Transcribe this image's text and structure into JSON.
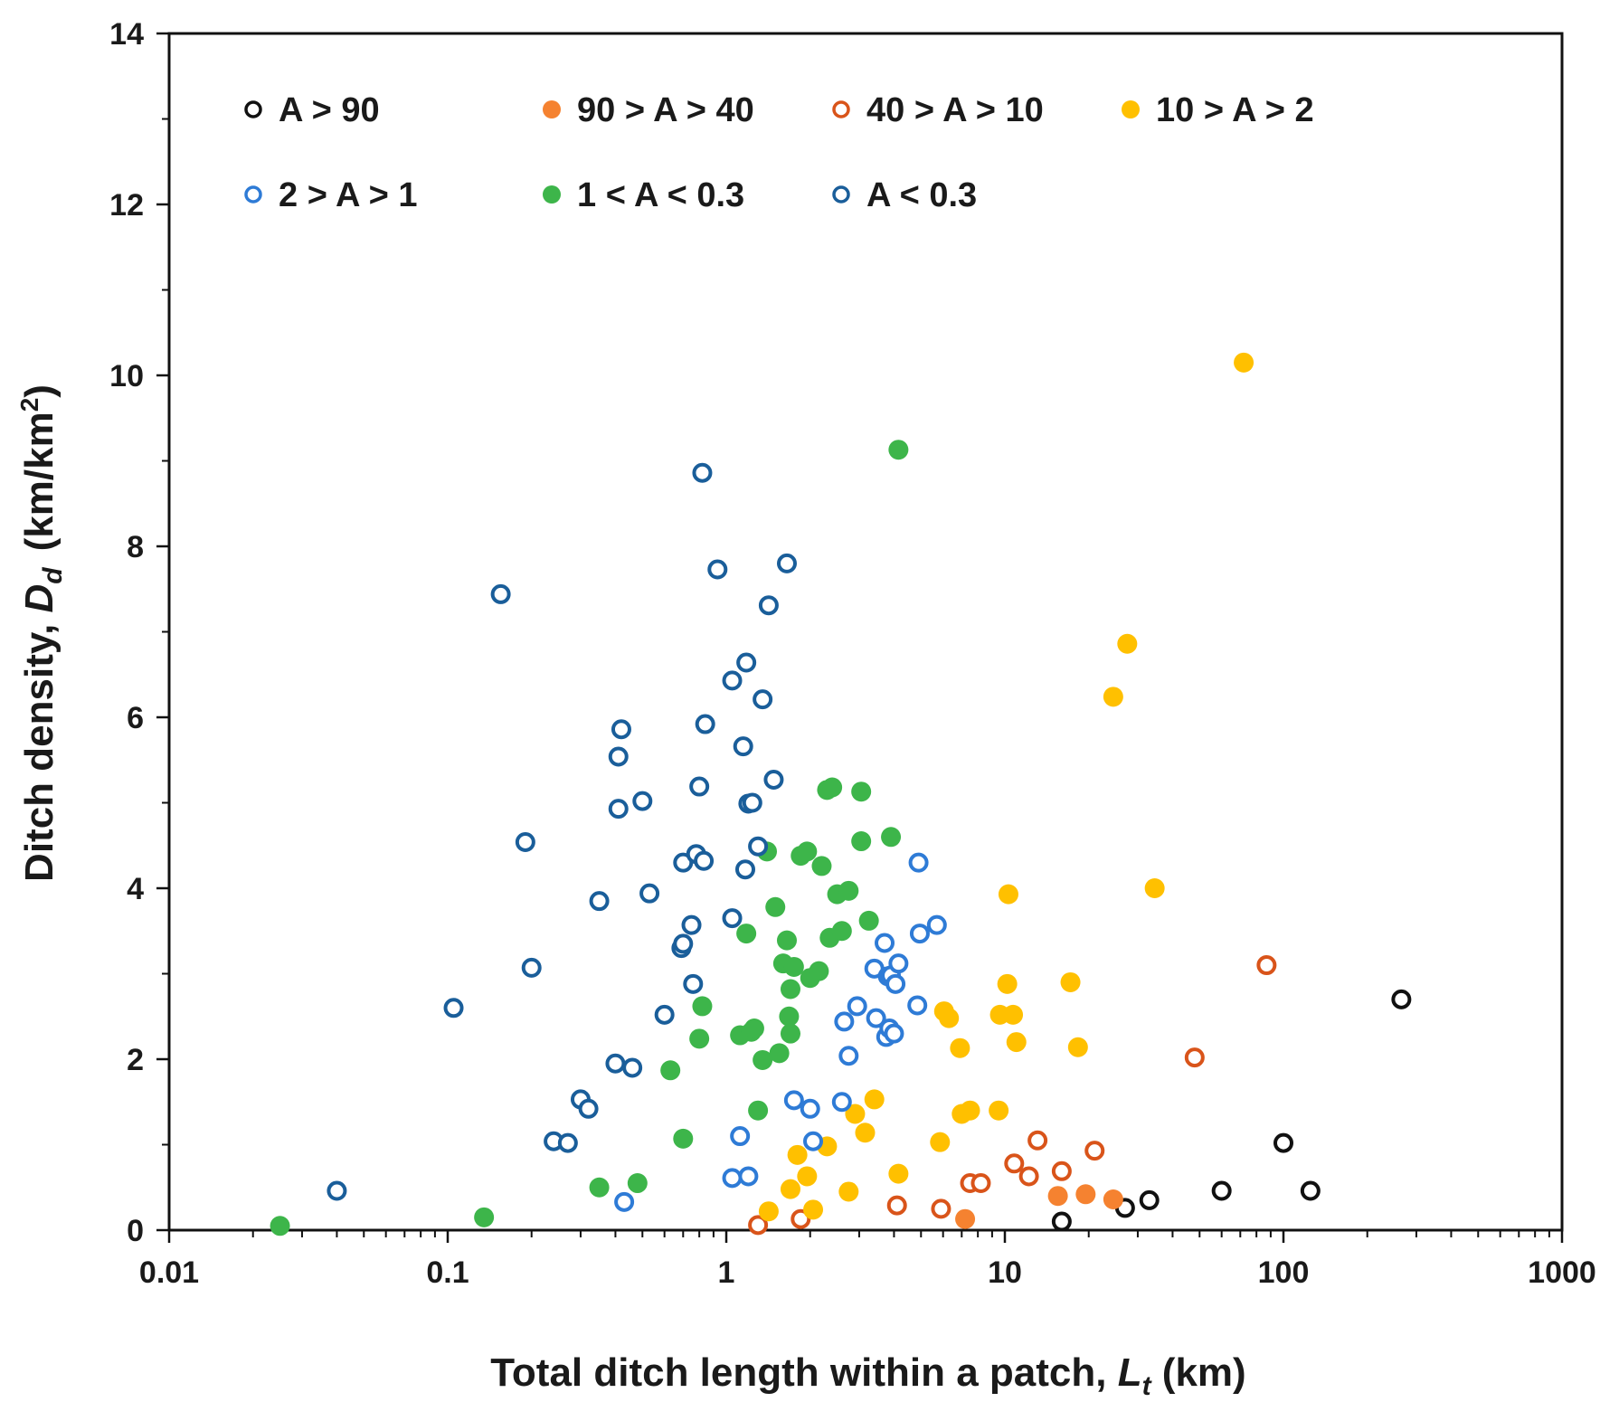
{
  "chart_data": {
    "type": "scatter",
    "title": "",
    "xlabel": {
      "main": "Total ditch length within a patch, ",
      "symbol": "L",
      "sub": "t",
      "unit": " (km)"
    },
    "ylabel": {
      "main": "Ditch density, ",
      "symbol": "D",
      "sub": "d",
      "unit": "(km/km",
      "sup": "2",
      "close": ")"
    },
    "xscale": "log",
    "xlim": [
      0.01,
      1000
    ],
    "ylim": [
      0,
      14
    ],
    "x_tick_labels": [
      "0.01",
      "0.1",
      "1",
      "10",
      "100",
      "1000"
    ],
    "y_tick_labels": [
      "0",
      "2",
      "4",
      "6",
      "8",
      "10",
      "12",
      "14"
    ],
    "grid": false,
    "legend_position": "top-left, inside plot",
    "series": [
      {
        "name": "A > 90",
        "color": "#111111",
        "filled": false,
        "points": [
          [
            16,
            0.1
          ],
          [
            27,
            0.26
          ],
          [
            33,
            0.35
          ],
          [
            60,
            0.46
          ],
          [
            100,
            1.02
          ],
          [
            125,
            0.46
          ],
          [
            265,
            2.7
          ]
        ]
      },
      {
        "name": "90 > A > 40",
        "color": "#F58230",
        "filled": true,
        "points": [
          [
            7.2,
            0.13
          ],
          [
            15.5,
            0.4
          ],
          [
            19.5,
            0.42
          ],
          [
            24.5,
            0.36
          ]
        ]
      },
      {
        "name": "40 > A > 10",
        "color": "#D9541A",
        "filled": false,
        "points": [
          [
            1.3,
            0.06
          ],
          [
            1.85,
            0.13
          ],
          [
            4.1,
            0.29
          ],
          [
            5.9,
            0.25
          ],
          [
            7.5,
            0.55
          ],
          [
            8.2,
            0.55
          ],
          [
            10.8,
            0.78
          ],
          [
            12.2,
            0.63
          ],
          [
            13.1,
            1.05
          ],
          [
            16.0,
            0.69
          ],
          [
            21.0,
            0.93
          ],
          [
            48,
            2.02
          ],
          [
            87,
            3.1
          ]
        ]
      },
      {
        "name": "10 > A > 2",
        "color": "#FFC000",
        "filled": true,
        "points": [
          [
            1.42,
            0.22
          ],
          [
            2.05,
            0.24
          ],
          [
            1.7,
            0.48
          ],
          [
            1.95,
            0.63
          ],
          [
            1.8,
            0.88
          ],
          [
            2.3,
            0.98
          ],
          [
            2.75,
            0.45
          ],
          [
            2.9,
            1.36
          ],
          [
            3.15,
            1.14
          ],
          [
            3.4,
            1.53
          ],
          [
            4.15,
            0.66
          ],
          [
            5.85,
            1.03
          ],
          [
            6.05,
            2.56
          ],
          [
            6.3,
            2.48
          ],
          [
            6.9,
            2.13
          ],
          [
            7.0,
            1.36
          ],
          [
            7.5,
            1.4
          ],
          [
            9.5,
            1.4
          ],
          [
            9.6,
            2.52
          ],
          [
            10.2,
            2.88
          ],
          [
            10.3,
            3.93
          ],
          [
            10.7,
            2.52
          ],
          [
            11.0,
            2.2
          ],
          [
            17.2,
            2.9
          ],
          [
            18.3,
            2.14
          ],
          [
            24.5,
            6.24
          ],
          [
            27.5,
            6.86
          ],
          [
            34.5,
            4.0
          ],
          [
            72,
            10.15
          ]
        ]
      },
      {
        "name": "2 > A > 1",
        "color": "#2E7BD6",
        "filled": false,
        "points": [
          [
            0.43,
            0.33
          ],
          [
            1.05,
            0.61
          ],
          [
            1.2,
            0.63
          ],
          [
            1.12,
            1.1
          ],
          [
            1.75,
            1.52
          ],
          [
            2.0,
            1.42
          ],
          [
            2.05,
            1.04
          ],
          [
            2.6,
            1.5
          ],
          [
            2.65,
            2.44
          ],
          [
            2.75,
            2.04
          ],
          [
            2.95,
            2.62
          ],
          [
            3.4,
            3.06
          ],
          [
            3.45,
            2.48
          ],
          [
            3.7,
            3.36
          ],
          [
            3.75,
            2.26
          ],
          [
            3.8,
            2.97
          ],
          [
            3.85,
            2.36
          ],
          [
            3.9,
            2.98
          ],
          [
            4.0,
            2.3
          ],
          [
            4.05,
            2.88
          ],
          [
            4.15,
            3.12
          ],
          [
            4.85,
            2.63
          ],
          [
            4.9,
            4.3
          ],
          [
            4.95,
            3.47
          ],
          [
            5.7,
            3.57
          ]
        ]
      },
      {
        "name": "1 < A  < 0.3",
        "color": "#3DB54A",
        "filled": true,
        "points": [
          [
            0.025,
            0.05
          ],
          [
            0.135,
            0.15
          ],
          [
            0.35,
            0.5
          ],
          [
            0.48,
            0.55
          ],
          [
            0.63,
            1.87
          ],
          [
            0.7,
            1.07
          ],
          [
            0.8,
            2.24
          ],
          [
            0.82,
            2.62
          ],
          [
            1.12,
            2.28
          ],
          [
            1.18,
            3.47
          ],
          [
            1.23,
            2.32
          ],
          [
            1.26,
            2.36
          ],
          [
            1.3,
            1.4
          ],
          [
            1.35,
            1.99
          ],
          [
            1.4,
            4.43
          ],
          [
            1.5,
            3.78
          ],
          [
            1.55,
            2.07
          ],
          [
            1.6,
            3.12
          ],
          [
            1.65,
            3.39
          ],
          [
            1.68,
            2.5
          ],
          [
            1.7,
            2.3
          ],
          [
            1.7,
            2.82
          ],
          [
            1.75,
            3.08
          ],
          [
            1.85,
            4.38
          ],
          [
            1.95,
            4.43
          ],
          [
            2.0,
            2.95
          ],
          [
            2.15,
            3.03
          ],
          [
            2.2,
            4.26
          ],
          [
            2.3,
            5.15
          ],
          [
            2.35,
            3.42
          ],
          [
            2.4,
            5.18
          ],
          [
            2.5,
            3.93
          ],
          [
            2.6,
            3.5
          ],
          [
            2.75,
            3.97
          ],
          [
            3.05,
            5.13
          ],
          [
            3.05,
            4.55
          ],
          [
            3.25,
            3.62
          ],
          [
            3.9,
            4.6
          ],
          [
            4.15,
            9.13
          ]
        ]
      },
      {
        "name": "A < 0.3",
        "color": "#1A5E9A",
        "filled": false,
        "points": [
          [
            0.04,
            0.46
          ],
          [
            0.105,
            2.6
          ],
          [
            0.155,
            7.44
          ],
          [
            0.19,
            4.54
          ],
          [
            0.2,
            3.07
          ],
          [
            0.24,
            1.04
          ],
          [
            0.27,
            1.02
          ],
          [
            0.3,
            1.53
          ],
          [
            0.32,
            1.42
          ],
          [
            0.35,
            3.85
          ],
          [
            0.4,
            1.95
          ],
          [
            0.41,
            4.93
          ],
          [
            0.41,
            5.54
          ],
          [
            0.42,
            5.86
          ],
          [
            0.46,
            1.9
          ],
          [
            0.5,
            5.02
          ],
          [
            0.53,
            3.94
          ],
          [
            0.6,
            2.52
          ],
          [
            0.69,
            3.3
          ],
          [
            0.7,
            4.3
          ],
          [
            0.7,
            3.35
          ],
          [
            0.75,
            3.57
          ],
          [
            0.76,
            2.88
          ],
          [
            0.78,
            4.4
          ],
          [
            0.8,
            5.19
          ],
          [
            0.82,
            8.86
          ],
          [
            0.83,
            4.32
          ],
          [
            0.84,
            5.92
          ],
          [
            0.93,
            7.73
          ],
          [
            1.05,
            6.43
          ],
          [
            1.05,
            3.65
          ],
          [
            1.15,
            5.66
          ],
          [
            1.17,
            4.22
          ],
          [
            1.18,
            6.64
          ],
          [
            1.2,
            4.99
          ],
          [
            1.24,
            5.0
          ],
          [
            1.3,
            4.49
          ],
          [
            1.35,
            6.21
          ],
          [
            1.42,
            7.31
          ],
          [
            1.48,
            5.27
          ],
          [
            1.65,
            7.8
          ]
        ]
      }
    ]
  }
}
